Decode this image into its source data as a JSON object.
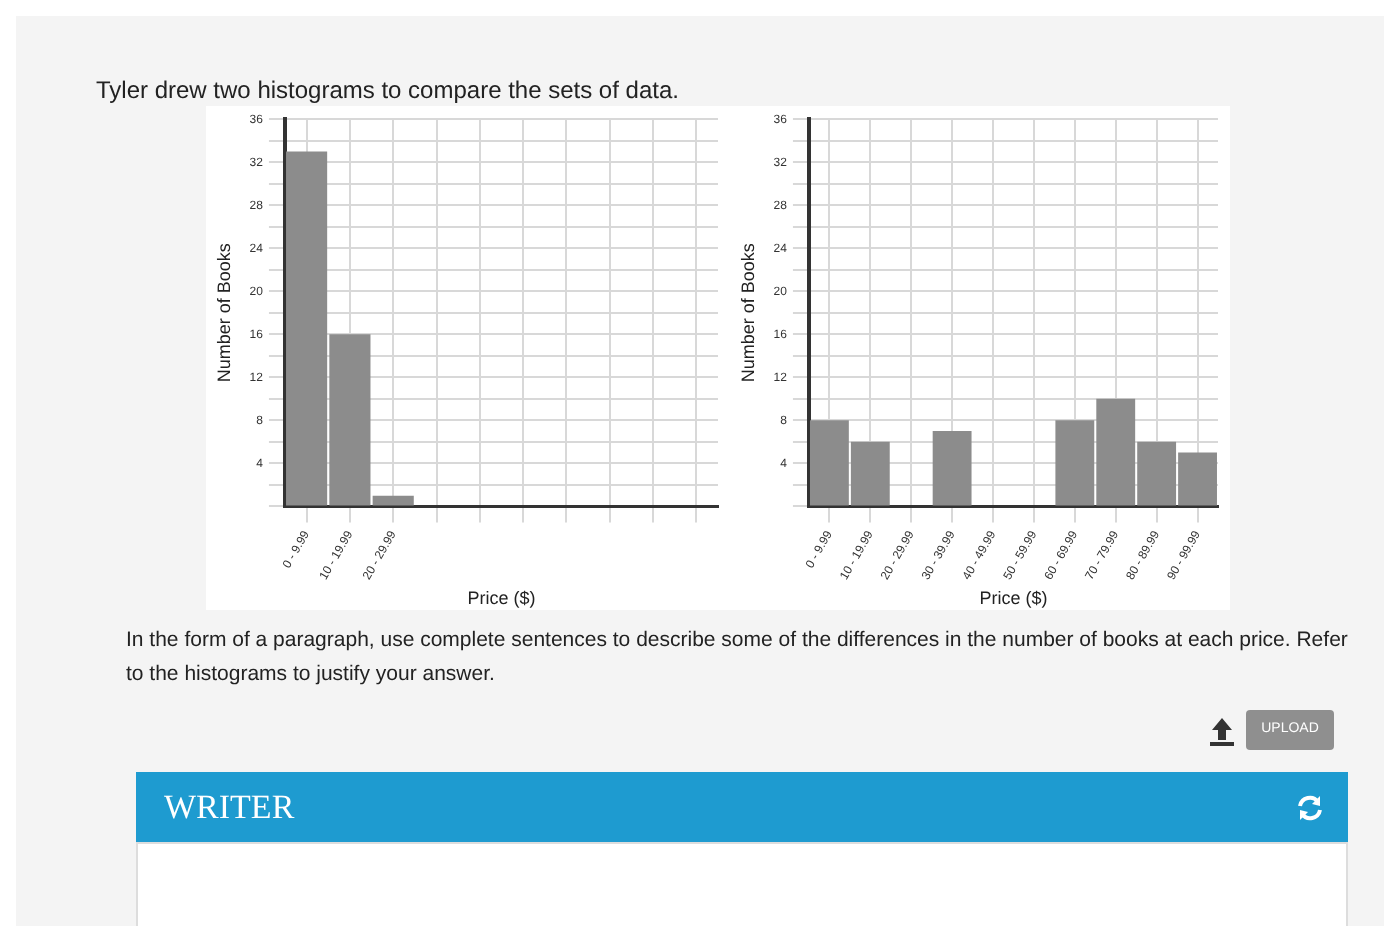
{
  "chart_data": [
    {
      "type": "bar",
      "ylabel": "Number of Books",
      "xlabel": "Price ($)",
      "categories": [
        "0 - 9.99",
        "10 - 19.99",
        "20 - 29.99",
        null,
        null,
        null,
        null,
        null,
        null,
        null
      ],
      "values": [
        33,
        16,
        1,
        null,
        null,
        null,
        null,
        null,
        null,
        null
      ],
      "color": "#8c8c8c",
      "ylim": [
        0,
        36
      ],
      "yticks": [
        {
          "value": 0,
          "label": null
        },
        {
          "value": 2,
          "label": null
        },
        4,
        {
          "value": 6,
          "label": null
        },
        8,
        {
          "value": 10,
          "label": null
        },
        12,
        {
          "value": 14,
          "label": null
        },
        16,
        {
          "value": 18,
          "label": null
        },
        20,
        {
          "value": 22,
          "label": null
        },
        24,
        {
          "value": 26,
          "label": null
        },
        28,
        {
          "value": 30,
          "label": null
        },
        32,
        {
          "value": 34,
          "label": null
        },
        36
      ],
      "grid": true,
      "legend": false,
      "annotations": [
        "Tyler drew two histograms to compare the sets of data.",
        "In the form of a paragraph, use complete sentences to describe some of the differences in the number of books at each price. Refer to the histograms to justify your answer.",
        "UPLOAD",
        "WRITER"
      ]
    },
    {
      "type": "bar",
      "ylabel": "Number of Books",
      "xlabel": "Price ($)",
      "categories": [
        "0 - 9.99",
        "10 - 19.99",
        "20 - 29.99",
        "30 - 39.99",
        "40 - 49.99",
        "50 - 59.99",
        "60 - 69.99",
        "70 - 79.99",
        "80 - 89.99",
        "90 - 99.99"
      ],
      "values": [
        8,
        6,
        0,
        7,
        0,
        0,
        8,
        10,
        6,
        5
      ],
      "color": "#8c8c8c",
      "ylim": [
        0,
        36
      ],
      "yticks": [
        {
          "value": 0,
          "label": null
        },
        {
          "value": 2,
          "label": null
        },
        4,
        {
          "value": 6,
          "label": null
        },
        8,
        {
          "value": 10,
          "label": null
        },
        12,
        {
          "value": 14,
          "label": null
        },
        16,
        {
          "value": 18,
          "label": null
        },
        20,
        {
          "value": 22,
          "label": null
        },
        24,
        {
          "value": 26,
          "label": null
        },
        28,
        {
          "value": 30,
          "label": null
        },
        32,
        {
          "value": 34,
          "label": null
        },
        36
      ],
      "grid": true,
      "legend": false
    }
  ]
}
